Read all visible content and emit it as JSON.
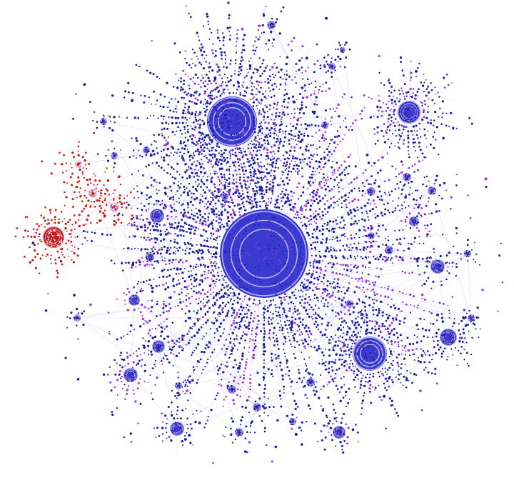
{
  "graph": {
    "background": "#ffffff",
    "colors": {
      "node_primary": "#1f1f9e",
      "node_secondary": "#9b3ae0",
      "node_tertiary": "#cc1a10",
      "hub_fill": "#3a3ad0",
      "hub_ring": "#c9c9f5",
      "edge": "#cfcff2"
    }
  }
}
